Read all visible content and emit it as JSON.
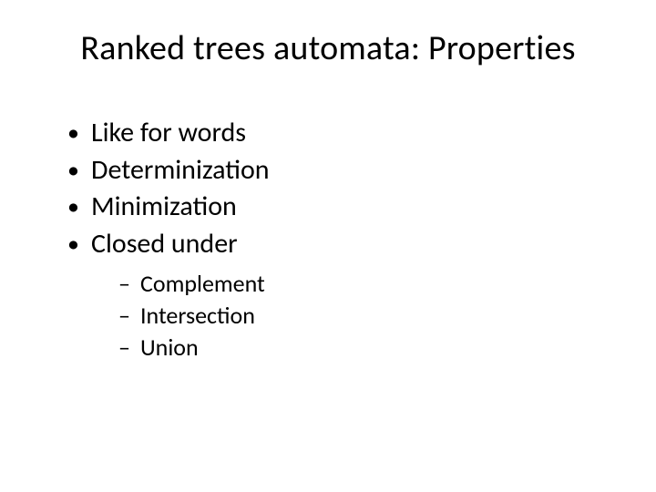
{
  "slide": {
    "title": "Ranked trees automata: Properties",
    "bullets": [
      {
        "text": "Like for words"
      },
      {
        "text": "Determinization"
      },
      {
        "text": "Minimization"
      },
      {
        "text": "Closed under",
        "sub": [
          {
            "text": "Complement"
          },
          {
            "text": "Intersection"
          },
          {
            "text": "Union"
          }
        ]
      }
    ]
  },
  "style": {
    "background_color": "#ffffff",
    "text_color": "#000000",
    "font_family": "Calibri",
    "title_fontsize_pt": 38,
    "bullet_fontsize_pt": 30,
    "subbullet_fontsize_pt": 26,
    "bullet_marker": "•",
    "subbullet_marker": "–"
  }
}
